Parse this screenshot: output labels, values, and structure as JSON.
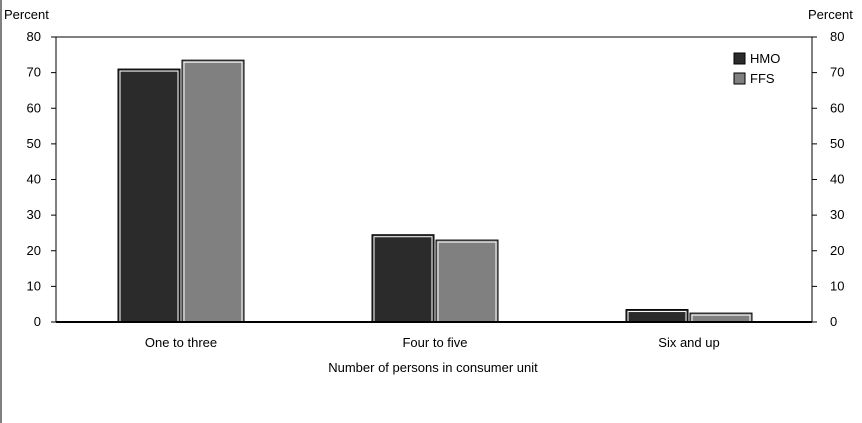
{
  "chart_data": {
    "type": "bar",
    "categories": [
      "One to three",
      "Four to five",
      "Six and up"
    ],
    "series": [
      {
        "name": "HMO",
        "values": [
          71,
          24.5,
          3.5
        ],
        "color": "#2b2b2b"
      },
      {
        "name": "FFS",
        "values": [
          73.5,
          23,
          2.5
        ],
        "color": "#808080"
      }
    ],
    "title": "",
    "xlabel": "Number of persons in consumer unit",
    "ylabel_left": "Percent",
    "ylabel_right": "Percent",
    "ylim": [
      0,
      80
    ],
    "yticks": [
      0,
      10,
      20,
      30,
      40,
      50,
      60,
      70,
      80
    ],
    "grid": false,
    "legend_position": "top-right"
  }
}
